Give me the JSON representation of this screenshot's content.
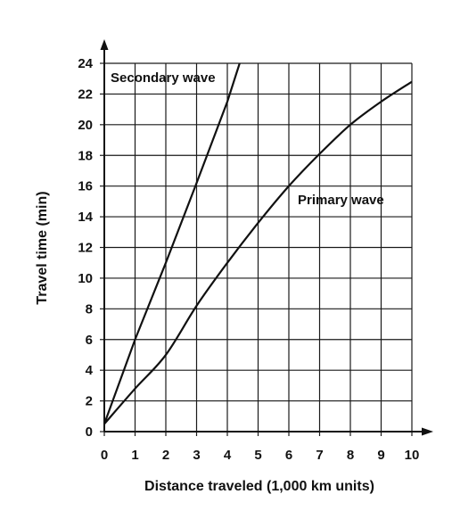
{
  "chart_data": {
    "type": "line",
    "title": "",
    "xlabel": "Distance traveled (1,000 km units)",
    "ylabel": "Travel time (min)",
    "xlim": [
      0,
      10
    ],
    "ylim": [
      0,
      24
    ],
    "x_ticks": [
      "0",
      "1",
      "2",
      "3",
      "4",
      "5",
      "6",
      "7",
      "8",
      "9",
      "10"
    ],
    "y_ticks": [
      "0",
      "2",
      "4",
      "6",
      "8",
      "10",
      "12",
      "14",
      "16",
      "18",
      "20",
      "22",
      "24"
    ],
    "grid": true,
    "legend": "none",
    "series": [
      {
        "name": "Secondary wave",
        "x": [
          0,
          1,
          2,
          3,
          4,
          4.4
        ],
        "y": [
          0.5,
          6,
          11,
          16.2,
          21.5,
          24
        ]
      },
      {
        "name": "Primary wave",
        "x": [
          0,
          1,
          2,
          3,
          4,
          5,
          6,
          7,
          8,
          9,
          10
        ],
        "y": [
          0.5,
          2.8,
          5,
          8.2,
          11,
          13.6,
          16,
          18.1,
          20,
          21.5,
          22.8
        ]
      }
    ]
  }
}
